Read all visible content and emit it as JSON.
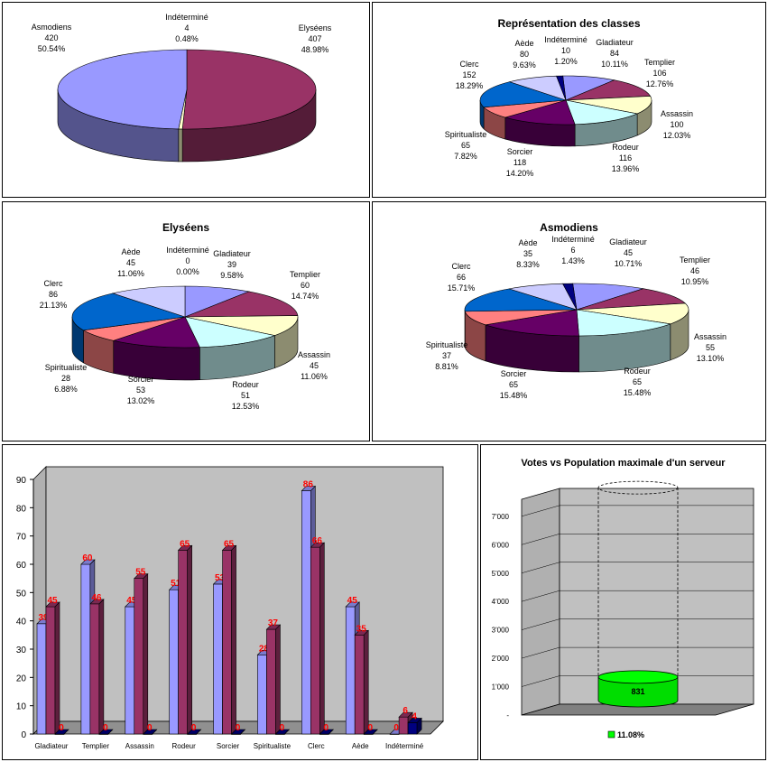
{
  "chart_data": [
    {
      "type": "pie",
      "title": "",
      "slices": [
        {
          "name": "Asmodiens",
          "value": 420,
          "pct": "50.54%",
          "color": "#993366"
        },
        {
          "name": "Indéterminé",
          "value": 4,
          "pct": "0.48%",
          "color": "#ffffcc"
        },
        {
          "name": "Elyséens",
          "value": 407,
          "pct": "48.98%",
          "color": "#9999ff"
        }
      ]
    },
    {
      "type": "pie",
      "title": "Représentation des classes",
      "slices": [
        {
          "name": "Gladiateur",
          "value": 84,
          "pct": "10.11%",
          "color": "#9999ff"
        },
        {
          "name": "Templier",
          "value": 106,
          "pct": "12.76%",
          "color": "#993366"
        },
        {
          "name": "Assassin",
          "value": 100,
          "pct": "12.03%",
          "color": "#ffffcc"
        },
        {
          "name": "Rodeur",
          "value": 116,
          "pct": "13.96%",
          "color": "#ccffff"
        },
        {
          "name": "Sorcier",
          "value": 118,
          "pct": "14.20%",
          "color": "#660066"
        },
        {
          "name": "Spiritualiste",
          "value": 65,
          "pct": "7.82%",
          "color": "#ff8080"
        },
        {
          "name": "Clerc",
          "value": 152,
          "pct": "18.29%",
          "color": "#0066cc"
        },
        {
          "name": "Aède",
          "value": 80,
          "pct": "9.63%",
          "color": "#ccccff"
        },
        {
          "name": "Indéterminé",
          "value": 10,
          "pct": "1.20%",
          "color": "#000080"
        }
      ]
    },
    {
      "type": "pie",
      "title": "Elyséens",
      "slices": [
        {
          "name": "Gladiateur",
          "value": 39,
          "pct": "9.58%",
          "color": "#9999ff"
        },
        {
          "name": "Templier",
          "value": 60,
          "pct": "14.74%",
          "color": "#993366"
        },
        {
          "name": "Assassin",
          "value": 45,
          "pct": "11.06%",
          "color": "#ffffcc"
        },
        {
          "name": "Rodeur",
          "value": 51,
          "pct": "12.53%",
          "color": "#ccffff"
        },
        {
          "name": "Sorcier",
          "value": 53,
          "pct": "13.02%",
          "color": "#660066"
        },
        {
          "name": "Spiritualiste",
          "value": 28,
          "pct": "6.88%",
          "color": "#ff8080"
        },
        {
          "name": "Clerc",
          "value": 86,
          "pct": "21.13%",
          "color": "#0066cc"
        },
        {
          "name": "Aède",
          "value": 45,
          "pct": "11.06%",
          "color": "#ccccff"
        },
        {
          "name": "Indéterminé",
          "value": 0,
          "pct": "0.00%",
          "color": "#000080"
        }
      ]
    },
    {
      "type": "pie",
      "title": "Asmodiens",
      "slices": [
        {
          "name": "Gladiateur",
          "value": 45,
          "pct": "10.71%",
          "color": "#9999ff"
        },
        {
          "name": "Templier",
          "value": 46,
          "pct": "10.95%",
          "color": "#993366"
        },
        {
          "name": "Assassin",
          "value": 55,
          "pct": "13.10%",
          "color": "#ffffcc"
        },
        {
          "name": "Rodeur",
          "value": 65,
          "pct": "15.48%",
          "color": "#ccffff"
        },
        {
          "name": "Sorcier",
          "value": 65,
          "pct": "15.48%",
          "color": "#660066"
        },
        {
          "name": "Spiritualiste",
          "value": 37,
          "pct": "8.81%",
          "color": "#ff8080"
        },
        {
          "name": "Clerc",
          "value": 66,
          "pct": "15.71%",
          "color": "#0066cc"
        },
        {
          "name": "Aède",
          "value": 35,
          "pct": "8.33%",
          "color": "#ccccff"
        },
        {
          "name": "Indéterminé",
          "value": 6,
          "pct": "1.43%",
          "color": "#000080"
        }
      ]
    },
    {
      "type": "bar",
      "title": "",
      "categories": [
        "Gladiateur",
        "Templier",
        "Assassin",
        "Rodeur",
        "Sorcier",
        "Spiritualiste",
        "Clerc",
        "Aède",
        "Indéterminé"
      ],
      "series": [
        {
          "values": [
            39,
            60,
            45,
            51,
            53,
            28,
            86,
            45,
            0
          ],
          "color": "#9999ff"
        },
        {
          "values": [
            45,
            46,
            55,
            65,
            65,
            37,
            66,
            35,
            6
          ],
          "color": "#993366"
        },
        {
          "values": [
            0,
            0,
            0,
            0,
            0,
            0,
            0,
            0,
            4
          ],
          "color": "#000080"
        }
      ],
      "ylim": [
        0,
        90
      ],
      "yticks": [
        "0",
        "10",
        "20",
        "30",
        "40",
        "50",
        "60",
        "70",
        "80",
        "90"
      ],
      "label_color": "#ff0000",
      "grid": false
    },
    {
      "type": "bar",
      "title": "Votes vs Population maximale d'un serveur",
      "value": 831,
      "max": 7500,
      "yticks": [
        "-",
        "1'000",
        "2'000",
        "3'000",
        "4'000",
        "5'000",
        "6'000",
        "7'000"
      ],
      "legend": "11.08%",
      "color": "#00ff00",
      "grid": true
    }
  ]
}
